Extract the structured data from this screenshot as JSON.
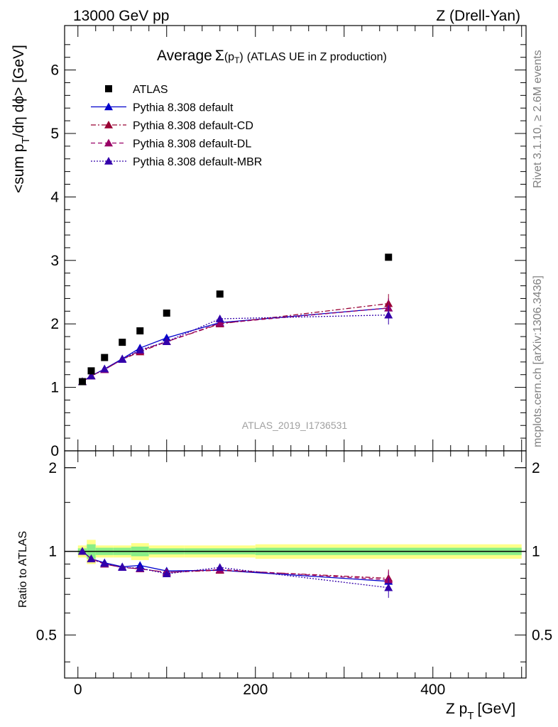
{
  "header": {
    "left": "13000 GeV pp",
    "right": "Z (Drell-Yan)"
  },
  "side": {
    "rivet": "Rivet 3.1.10, ≥ 2.6M events",
    "mcplots": "mcplots.cern.ch [arXiv:1306.3436]"
  },
  "analysis_id": "ATLAS_2019_I1736531",
  "chart_data": [
    {
      "type": "scatter",
      "title": "Average Σ(p_T) (ATLAS UE in Z production)",
      "title_parts": {
        "prefix": "Average",
        "sigma": "Σ",
        "p": "(p",
        "sub": "T",
        "suffix": ")",
        "rest": "(ATLAS UE in Z production)"
      },
      "ylabel": "<sum p_T/dη dϕ> [GeV]",
      "ylabel_parts": {
        "a": "<sum p",
        "sub": "T",
        "b": "/dη dϕ> [GeV]"
      },
      "xlim": [
        -15,
        505
      ],
      "ylim": [
        0,
        6.7
      ],
      "yticks": [
        0,
        1,
        2,
        3,
        4,
        5,
        6
      ],
      "ytick_labels": [
        "0",
        "1",
        "2",
        "3",
        "4",
        "5",
        "6"
      ],
      "x": [
        5,
        15,
        30,
        50,
        70,
        100,
        160,
        350
      ],
      "series": [
        {
          "name": "ATLAS",
          "color": "#000000",
          "style": "data",
          "values": [
            1.09,
            1.26,
            1.47,
            1.71,
            1.89,
            2.17,
            2.47,
            3.05
          ]
        },
        {
          "name": "Pythia 8.308 default",
          "color": "#0000cc",
          "style": "solid",
          "values": [
            1.09,
            1.18,
            1.29,
            1.45,
            1.62,
            1.78,
            2.02,
            2.25
          ]
        },
        {
          "name": "Pythia 8.308 default-CD",
          "color": "#990033",
          "style": "dashdot",
          "values": [
            1.09,
            1.18,
            1.28,
            1.44,
            1.56,
            1.72,
            2.0,
            2.32
          ]
        },
        {
          "name": "Pythia 8.308 default-DL",
          "color": "#990066",
          "style": "dashed",
          "values": [
            1.09,
            1.18,
            1.28,
            1.44,
            1.58,
            1.72,
            2.01,
            2.25
          ]
        },
        {
          "name": "Pythia 8.308 default-MBR",
          "color": "#3300aa",
          "style": "dotted",
          "values": [
            1.09,
            1.18,
            1.29,
            1.44,
            1.59,
            1.72,
            2.08,
            2.14
          ]
        }
      ]
    },
    {
      "type": "scatter",
      "ylabel": "Ratio to ATLAS",
      "xlabel": "Z p_T [GeV]",
      "xlabel_parts": {
        "a": "Z p",
        "sub": "T",
        "b": "[GeV]"
      },
      "xlim": [
        -15,
        505
      ],
      "ylim": [
        0.35,
        2.3
      ],
      "yticks": [
        0.5,
        1,
        2
      ],
      "ytick_labels": [
        "0.5",
        "1",
        "2"
      ],
      "xticks": [
        0,
        200,
        400
      ],
      "xtick_labels": [
        "0",
        "200",
        "400"
      ],
      "x": [
        5,
        15,
        30,
        50,
        70,
        100,
        160,
        350
      ],
      "band_bins": [
        [
          0,
          10
        ],
        [
          10,
          20
        ],
        [
          20,
          40
        ],
        [
          40,
          60
        ],
        [
          60,
          80
        ],
        [
          80,
          120
        ],
        [
          120,
          200
        ],
        [
          200,
          500
        ]
      ],
      "band_inner": [
        0.025,
        0.06,
        0.03,
        0.03,
        0.04,
        0.025,
        0.025,
        0.03
      ],
      "band_outer": [
        0.05,
        0.1,
        0.05,
        0.05,
        0.07,
        0.05,
        0.05,
        0.06
      ],
      "series": [
        {
          "name": "Pythia 8.308 default",
          "color": "#0000cc",
          "style": "solid",
          "values": [
            1.0,
            0.94,
            0.91,
            0.88,
            0.89,
            0.85,
            0.855,
            0.78
          ]
        },
        {
          "name": "Pythia 8.308 default-CD",
          "color": "#990033",
          "style": "dashdot",
          "values": [
            1.0,
            0.94,
            0.9,
            0.875,
            0.865,
            0.84,
            0.855,
            0.8
          ]
        },
        {
          "name": "Pythia 8.308 default-DL",
          "color": "#990066",
          "style": "dashed",
          "values": [
            1.0,
            0.94,
            0.9,
            0.875,
            0.865,
            0.84,
            0.86,
            0.79
          ]
        },
        {
          "name": "Pythia 8.308 default-MBR",
          "color": "#3300aa",
          "style": "dotted",
          "values": [
            1.0,
            0.94,
            0.905,
            0.875,
            0.87,
            0.83,
            0.875,
            0.74
          ]
        }
      ]
    }
  ]
}
